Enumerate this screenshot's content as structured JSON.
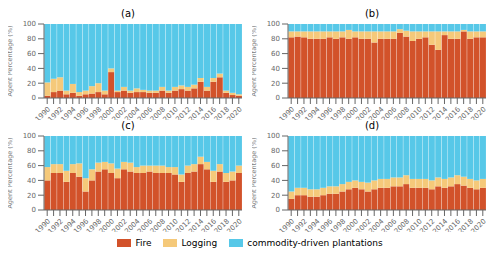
{
  "chart_data": [
    {
      "type": "bar",
      "title": "(a)",
      "y_label": "Agent Percentage (%)",
      "stacked": true,
      "categories": [
        "1990",
        null,
        "1992",
        null,
        "1994",
        null,
        "1996",
        null,
        "1998",
        null,
        "2000",
        null,
        "2002",
        null,
        "2004",
        null,
        "2006",
        null,
        "2008",
        null,
        "2010",
        null,
        "2012",
        null,
        "2014",
        null,
        "2016",
        null,
        "2018",
        null,
        "2020"
      ],
      "series": [
        {
          "name": "Fire",
          "color": "#D2522A",
          "values": [
            3,
            8,
            10,
            5,
            7,
            3,
            5,
            6,
            8,
            5,
            35,
            8,
            10,
            7,
            8,
            8,
            7,
            7,
            10,
            7,
            10,
            12,
            10,
            13,
            22,
            10,
            22,
            28,
            7,
            4,
            3
          ]
        },
        {
          "name": "Logging",
          "color": "#F5C97A",
          "values": [
            18,
            18,
            18,
            5,
            12,
            5,
            5,
            10,
            12,
            5,
            5,
            2,
            5,
            3,
            5,
            3,
            3,
            3,
            5,
            3,
            5,
            5,
            5,
            5,
            5,
            5,
            5,
            5,
            3,
            3,
            2
          ]
        },
        {
          "name": "commodity-driven plantations",
          "color": "#57C8E8",
          "values": [
            79,
            74,
            72,
            90,
            81,
            92,
            90,
            84,
            80,
            90,
            60,
            90,
            85,
            90,
            87,
            89,
            90,
            90,
            85,
            90,
            85,
            83,
            85,
            82,
            73,
            85,
            73,
            67,
            90,
            93,
            95
          ]
        }
      ],
      "ylim": [
        0,
        100
      ],
      "yticks": [
        0,
        20,
        40,
        60,
        80,
        100
      ]
    },
    {
      "type": "bar",
      "title": "(b)",
      "y_label": "Agent Percentage (%)",
      "stacked": true,
      "categories": [
        "1990",
        null,
        "1992",
        null,
        "1994",
        null,
        "1996",
        null,
        "1998",
        null,
        "2000",
        null,
        "2002",
        null,
        "2004",
        null,
        "2006",
        null,
        "2008",
        null,
        "2010",
        null,
        "2012",
        null,
        "2014",
        null,
        "2016",
        null,
        "2018",
        null,
        "2020"
      ],
      "series": [
        {
          "name": "Fire",
          "color": "#D2522A",
          "values": [
            82,
            83,
            82,
            80,
            80,
            80,
            82,
            80,
            82,
            80,
            82,
            80,
            80,
            75,
            80,
            80,
            80,
            88,
            83,
            77,
            80,
            82,
            72,
            65,
            85,
            80,
            80,
            90,
            80,
            82,
            82
          ]
        },
        {
          "name": "Logging",
          "color": "#F5C97A",
          "values": [
            8,
            7,
            8,
            10,
            10,
            10,
            8,
            10,
            8,
            12,
            8,
            10,
            10,
            15,
            10,
            10,
            10,
            5,
            8,
            13,
            10,
            8,
            18,
            25,
            5,
            10,
            10,
            2,
            10,
            8,
            8
          ]
        },
        {
          "name": "commodity-driven plantations",
          "color": "#57C8E8",
          "values": [
            10,
            10,
            10,
            10,
            10,
            10,
            10,
            10,
            10,
            8,
            10,
            10,
            10,
            10,
            10,
            10,
            10,
            7,
            9,
            10,
            10,
            10,
            10,
            10,
            10,
            10,
            10,
            8,
            10,
            10,
            10
          ]
        }
      ],
      "ylim": [
        0,
        100
      ],
      "yticks": [
        0,
        20,
        40,
        60,
        80,
        100
      ]
    },
    {
      "type": "bar",
      "title": "(c)",
      "y_label": "Agent Percentage (%)",
      "stacked": true,
      "categories": [
        "1990",
        null,
        "1992",
        null,
        "1994",
        null,
        "1996",
        null,
        "1998",
        null,
        "2000",
        null,
        "2002",
        null,
        "2004",
        null,
        "2006",
        null,
        "2008",
        null,
        "2010",
        null,
        "2012",
        null,
        "2014",
        null,
        "2016",
        null,
        "2018",
        null,
        "2020"
      ],
      "series": [
        {
          "name": "Fire",
          "color": "#D2522A",
          "values": [
            40,
            50,
            50,
            38,
            50,
            45,
            25,
            40,
            52,
            55,
            50,
            43,
            55,
            52,
            50,
            50,
            52,
            50,
            50,
            50,
            48,
            38,
            50,
            52,
            62,
            55,
            38,
            52,
            38,
            40,
            50
          ]
        },
        {
          "name": "Logging",
          "color": "#F5C97A",
          "values": [
            18,
            12,
            12,
            15,
            12,
            18,
            18,
            15,
            12,
            10,
            13,
            13,
            10,
            12,
            8,
            10,
            8,
            10,
            10,
            8,
            10,
            10,
            10,
            10,
            10,
            10,
            15,
            10,
            12,
            12,
            10
          ]
        },
        {
          "name": "commodity-driven plantations",
          "color": "#57C8E8",
          "values": [
            42,
            38,
            38,
            47,
            38,
            37,
            57,
            45,
            36,
            35,
            37,
            44,
            35,
            36,
            42,
            40,
            40,
            40,
            40,
            42,
            42,
            52,
            40,
            38,
            28,
            35,
            47,
            38,
            50,
            48,
            40
          ]
        }
      ],
      "ylim": [
        0,
        100
      ],
      "yticks": [
        0,
        20,
        40,
        60,
        80,
        100
      ]
    },
    {
      "type": "bar",
      "title": "(d)",
      "y_label": "Agent Percentage (%)",
      "stacked": true,
      "categories": [
        "1990",
        null,
        "1992",
        null,
        "1994",
        null,
        "1996",
        null,
        "1998",
        null,
        "2000",
        null,
        "2002",
        null,
        "2004",
        null,
        "2006",
        null,
        "2008",
        null,
        "2010",
        null,
        "2012",
        null,
        "2014",
        null,
        "2016",
        null,
        "2018",
        null,
        "2020"
      ],
      "series": [
        {
          "name": "Fire",
          "color": "#D2522A",
          "values": [
            15,
            20,
            20,
            18,
            18,
            20,
            22,
            22,
            25,
            28,
            30,
            28,
            25,
            28,
            30,
            30,
            32,
            32,
            35,
            30,
            30,
            30,
            28,
            32,
            30,
            32,
            35,
            33,
            30,
            28,
            30
          ]
        },
        {
          "name": "Logging",
          "color": "#F5C97A",
          "values": [
            10,
            10,
            10,
            10,
            10,
            10,
            10,
            10,
            10,
            10,
            10,
            10,
            12,
            12,
            12,
            12,
            12,
            12,
            12,
            12,
            12,
            12,
            12,
            12,
            12,
            12,
            12,
            12,
            12,
            12,
            12
          ]
        },
        {
          "name": "commodity-driven plantations",
          "color": "#57C8E8",
          "values": [
            75,
            70,
            70,
            72,
            72,
            70,
            68,
            68,
            65,
            62,
            60,
            62,
            63,
            60,
            58,
            58,
            56,
            56,
            53,
            58,
            58,
            58,
            60,
            56,
            58,
            56,
            53,
            55,
            58,
            60,
            58
          ]
        }
      ],
      "ylim": [
        0,
        100
      ],
      "yticks": [
        0,
        20,
        40,
        60,
        80,
        100
      ]
    }
  ]
}
